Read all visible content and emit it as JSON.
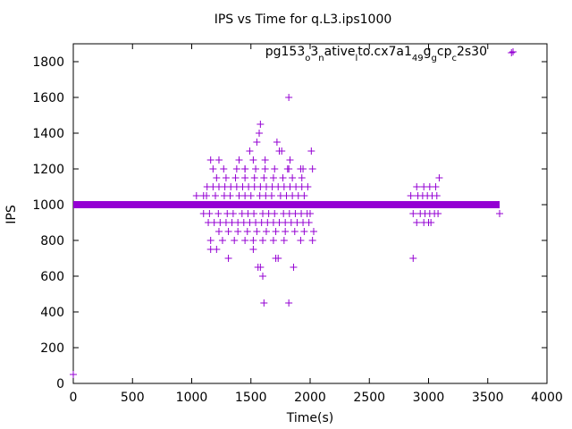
{
  "chart_data": {
    "type": "scatter",
    "title": "IPS vs Time for q.L3.ips1000",
    "xlabel": "Time(s)",
    "ylabel": "IPS",
    "xlim": [
      0,
      4000
    ],
    "ylim": [
      0,
      1900
    ],
    "x_ticks": [
      0,
      500,
      1000,
      1500,
      2000,
      2500,
      3000,
      3500,
      4000
    ],
    "y_ticks": [
      0,
      200,
      400,
      600,
      800,
      1000,
      1200,
      1400,
      1600,
      1800
    ],
    "grid": false,
    "legend_position": "top-right",
    "marker": "+",
    "color": "#9400d3",
    "series": [
      {
        "name": "pg153_o3_native_lto.cx7a1_49_g_cp_c2s30",
        "name_parts": [
          {
            "text": "pg153",
            "sub": false
          },
          {
            "text": "o",
            "sub": true
          },
          {
            "text": "3",
            "sub": false
          },
          {
            "text": "n",
            "sub": true
          },
          {
            "text": "ative",
            "sub": false
          },
          {
            "text": "l",
            "sub": true
          },
          {
            "text": "to.cx7a1",
            "sub": false
          },
          {
            "text": "49",
            "sub": true
          },
          {
            "text": "g",
            "sub": false
          },
          {
            "text": "g",
            "sub": true
          },
          {
            "text": "cp",
            "sub": false
          },
          {
            "text": "c",
            "sub": true
          },
          {
            "text": "2s30",
            "sub": false
          }
        ],
        "baseline": {
          "y": 1000,
          "x_from": 0,
          "x_to": 3600
        },
        "band_points": [
          [
            1100,
            950
          ],
          [
            1125,
            1050
          ],
          [
            1150,
            950
          ],
          [
            1175,
            1000
          ],
          [
            1200,
            1050
          ],
          [
            1225,
            950
          ],
          [
            1250,
            1000
          ],
          [
            1275,
            1050
          ],
          [
            1300,
            950
          ],
          [
            1325,
            1050
          ],
          [
            1350,
            950
          ],
          [
            1375,
            1000
          ],
          [
            1400,
            1050
          ],
          [
            1425,
            950
          ],
          [
            1450,
            1050
          ],
          [
            1475,
            950
          ],
          [
            1500,
            1050
          ],
          [
            1525,
            950
          ],
          [
            1550,
            1000
          ],
          [
            1575,
            1050
          ],
          [
            1600,
            950
          ],
          [
            1625,
            1050
          ],
          [
            1650,
            950
          ],
          [
            1675,
            1050
          ],
          [
            1700,
            950
          ],
          [
            1725,
            1000
          ],
          [
            1750,
            1050
          ],
          [
            1775,
            950
          ],
          [
            1800,
            1050
          ],
          [
            1825,
            950
          ],
          [
            1850,
            1050
          ],
          [
            1875,
            950
          ],
          [
            1900,
            1050
          ],
          [
            1925,
            950
          ],
          [
            1950,
            1050
          ],
          [
            1975,
            950
          ],
          [
            2000,
            950
          ],
          [
            1130,
            1100
          ],
          [
            1180,
            1100
          ],
          [
            1230,
            1100
          ],
          [
            1280,
            1100
          ],
          [
            1330,
            1100
          ],
          [
            1380,
            1100
          ],
          [
            1430,
            1100
          ],
          [
            1480,
            1100
          ],
          [
            1530,
            1100
          ],
          [
            1580,
            1100
          ],
          [
            1630,
            1100
          ],
          [
            1680,
            1100
          ],
          [
            1730,
            1100
          ],
          [
            1780,
            1100
          ],
          [
            1830,
            1100
          ],
          [
            1880,
            1100
          ],
          [
            1930,
            1100
          ],
          [
            1980,
            1100
          ],
          [
            1140,
            900
          ],
          [
            1190,
            900
          ],
          [
            1240,
            900
          ],
          [
            1290,
            900
          ],
          [
            1340,
            900
          ],
          [
            1390,
            900
          ],
          [
            1440,
            900
          ],
          [
            1490,
            900
          ],
          [
            1540,
            900
          ],
          [
            1590,
            900
          ],
          [
            1640,
            900
          ],
          [
            1690,
            900
          ],
          [
            1740,
            900
          ],
          [
            1790,
            900
          ],
          [
            1840,
            900
          ],
          [
            1890,
            900
          ],
          [
            1940,
            900
          ],
          [
            1990,
            900
          ],
          [
            1210,
            1150
          ],
          [
            1290,
            1150
          ],
          [
            1370,
            1150
          ],
          [
            1450,
            1150
          ],
          [
            1530,
            1150
          ],
          [
            1610,
            1150
          ],
          [
            1690,
            1150
          ],
          [
            1770,
            1150
          ],
          [
            1850,
            1150
          ],
          [
            1930,
            1150
          ],
          [
            1230,
            850
          ],
          [
            1310,
            850
          ],
          [
            1390,
            850
          ],
          [
            1470,
            850
          ],
          [
            1550,
            850
          ],
          [
            1630,
            850
          ],
          [
            1710,
            850
          ],
          [
            1790,
            850
          ],
          [
            1870,
            850
          ],
          [
            1950,
            850
          ],
          [
            2030,
            850
          ],
          [
            1270,
            1200
          ],
          [
            1380,
            1200
          ],
          [
            1450,
            1200
          ],
          [
            1540,
            1200
          ],
          [
            1620,
            1200
          ],
          [
            1700,
            1200
          ],
          [
            1810,
            1200
          ],
          [
            1920,
            1200
          ],
          [
            1260,
            800
          ],
          [
            1360,
            800
          ],
          [
            1450,
            800
          ],
          [
            1520,
            800
          ],
          [
            1600,
            800
          ],
          [
            1690,
            800
          ],
          [
            1780,
            800
          ],
          [
            1920,
            800
          ],
          [
            2020,
            800
          ]
        ],
        "outliers": [
          [
            0,
            50
          ],
          [
            1040,
            1050
          ],
          [
            1100,
            1050
          ],
          [
            1160,
            1250
          ],
          [
            1180,
            1200
          ],
          [
            1230,
            1250
          ],
          [
            1160,
            750
          ],
          [
            1210,
            750
          ],
          [
            1160,
            800
          ],
          [
            1310,
            700
          ],
          [
            1400,
            1250
          ],
          [
            1450,
            1200
          ],
          [
            1490,
            1300
          ],
          [
            1520,
            1250
          ],
          [
            1550,
            1350
          ],
          [
            1570,
            1400
          ],
          [
            1580,
            1450
          ],
          [
            1620,
            1250
          ],
          [
            1520,
            750
          ],
          [
            1560,
            650
          ],
          [
            1580,
            650
          ],
          [
            1600,
            600
          ],
          [
            1610,
            450
          ],
          [
            1710,
            700
          ],
          [
            1730,
            700
          ],
          [
            1760,
            1300
          ],
          [
            1720,
            1350
          ],
          [
            1740,
            1300
          ],
          [
            1820,
            1600
          ],
          [
            1830,
            1250
          ],
          [
            1820,
            1200
          ],
          [
            1820,
            450
          ],
          [
            1860,
            650
          ],
          [
            1940,
            1200
          ],
          [
            2010,
            1300
          ],
          [
            2020,
            1200
          ],
          [
            3600,
            950
          ],
          [
            3700,
            1850
          ]
        ],
        "cluster2_points": [
          [
            2850,
            1050
          ],
          [
            2870,
            950
          ],
          [
            2890,
            1000
          ],
          [
            2910,
            1050
          ],
          [
            2930,
            950
          ],
          [
            2950,
            1050
          ],
          [
            2970,
            950
          ],
          [
            2990,
            1050
          ],
          [
            3010,
            950
          ],
          [
            3030,
            1050
          ],
          [
            3050,
            950
          ],
          [
            3070,
            1050
          ],
          [
            3080,
            950
          ],
          [
            2900,
            1100
          ],
          [
            2960,
            1100
          ],
          [
            3010,
            1100
          ],
          [
            3060,
            1100
          ],
          [
            2900,
            900
          ],
          [
            2960,
            900
          ],
          [
            3000,
            900
          ],
          [
            3020,
            900
          ],
          [
            3090,
            1150
          ],
          [
            2870,
            700
          ]
        ]
      }
    ]
  }
}
